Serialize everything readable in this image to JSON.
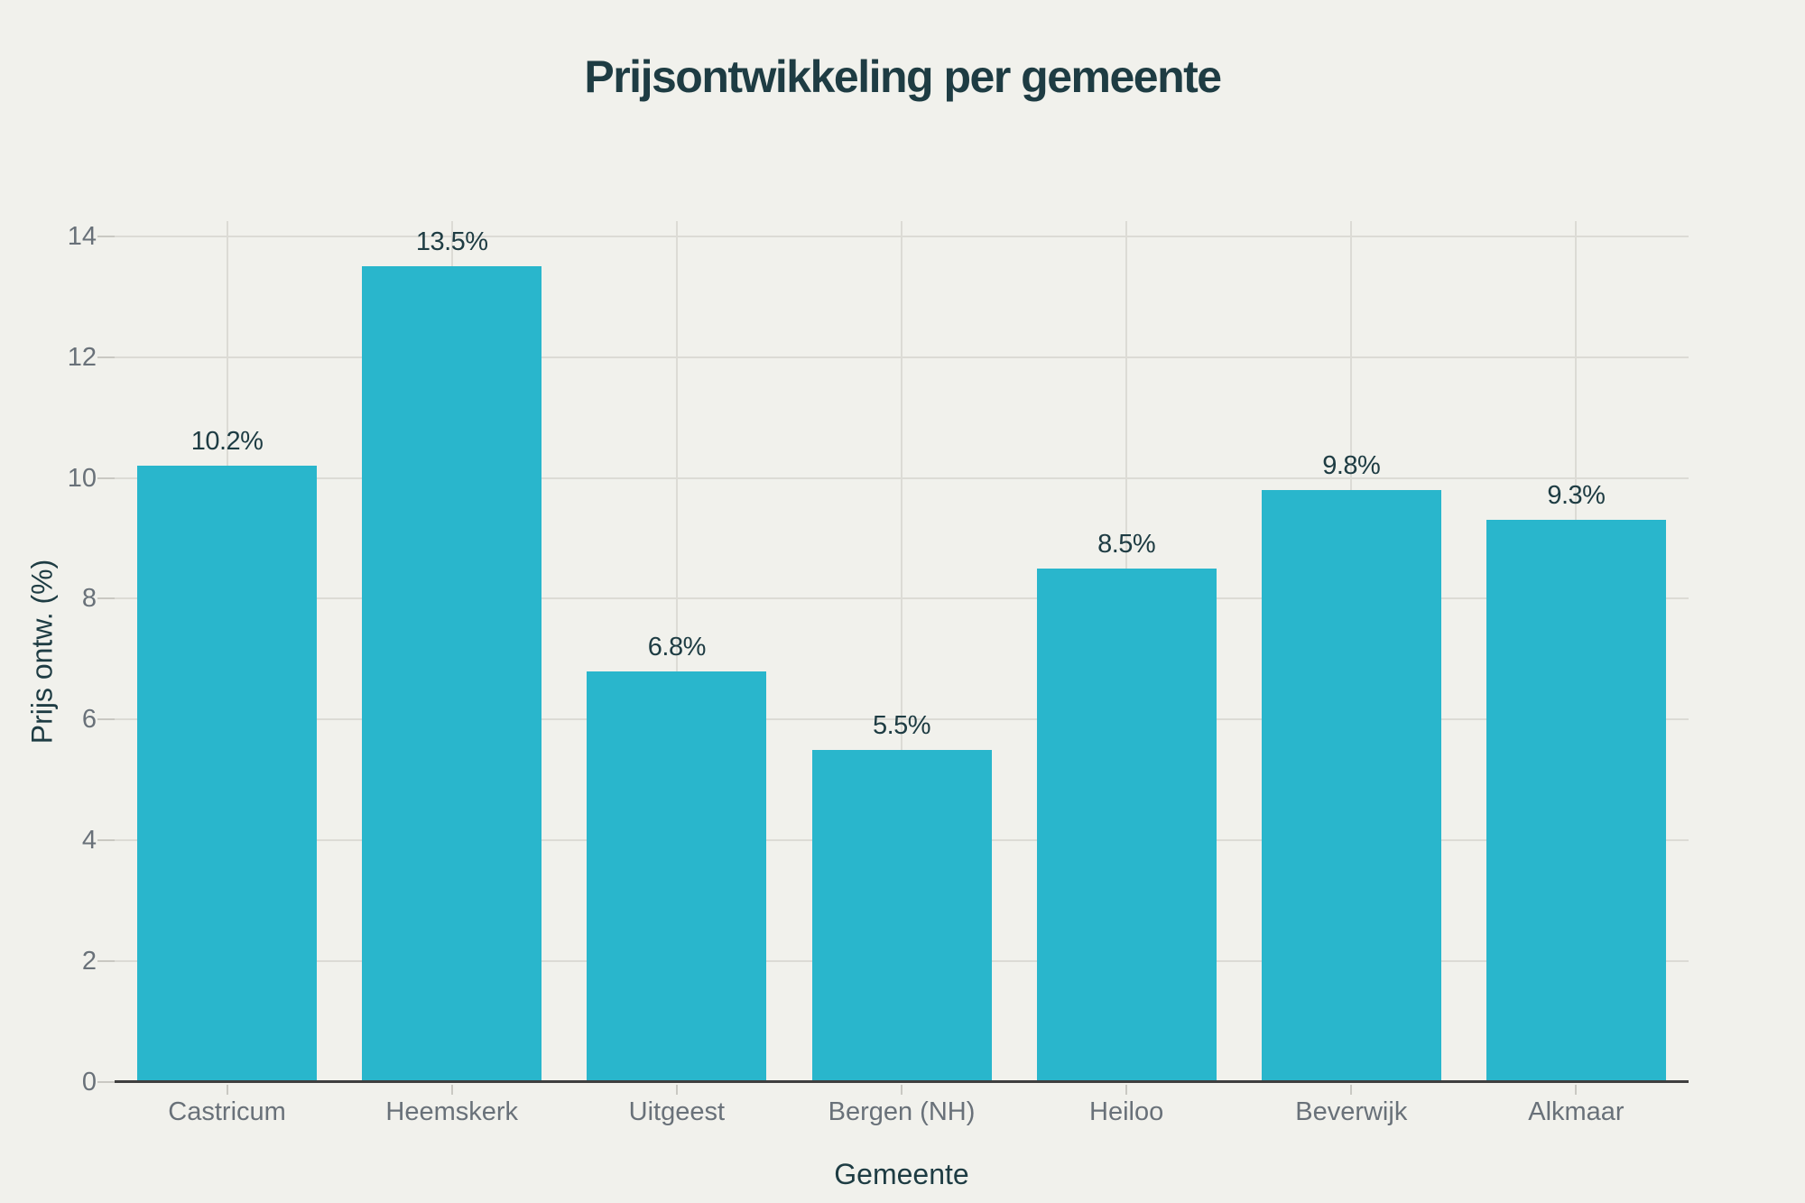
{
  "chart_data": {
    "type": "bar",
    "title": "Prijsontwikkeling per gemeente",
    "xlabel": "Gemeente",
    "ylabel": "Prijs ontw. (%)",
    "categories": [
      "Castricum",
      "Heemskerk",
      "Uitgeest",
      "Bergen (NH)",
      "Heiloo",
      "Beverwijk",
      "Alkmaar"
    ],
    "values": [
      10.2,
      13.5,
      6.8,
      5.5,
      8.5,
      9.8,
      9.3
    ],
    "bar_labels": [
      "10.2%",
      "13.5%",
      "6.8%",
      "5.5%",
      "8.5%",
      "9.8%",
      "9.3%"
    ],
    "yticks": [
      0,
      2,
      4,
      6,
      8,
      10,
      12,
      14
    ],
    "ylim": [
      0,
      14.25
    ],
    "grid": true,
    "legend": false,
    "colors": {
      "background": "#f1f1ec",
      "bar": "#29b6cc",
      "grid_line": "#dcdbd5",
      "axis_line": "#3f3f3f",
      "tick_mark": "#c9c8c2",
      "tick_label": "#697179",
      "text_dark": "#1e3c43"
    }
  }
}
